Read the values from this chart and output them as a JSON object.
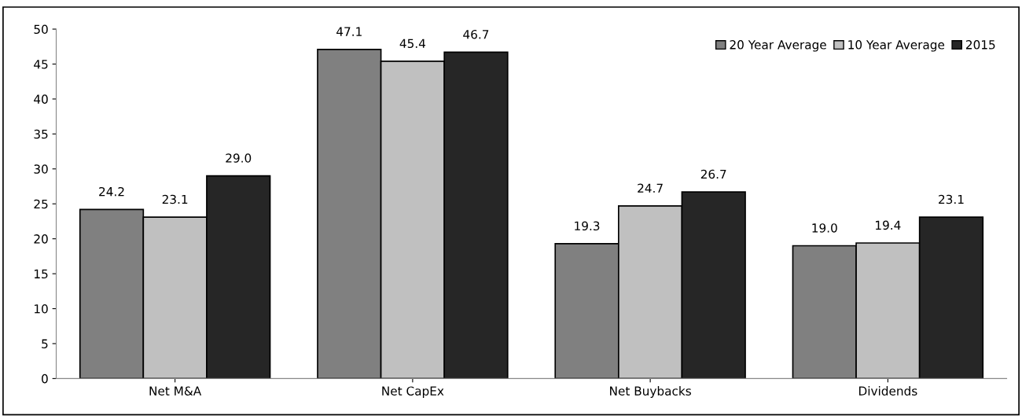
{
  "chart_data": {
    "type": "bar",
    "categories": [
      "Net M&A",
      "Net CapEx",
      "Net Buybacks",
      "Dividends"
    ],
    "series": [
      {
        "name": "20 Year Average",
        "color": "#808080",
        "values": [
          24.2,
          47.1,
          19.3,
          19.0
        ],
        "value_labels": [
          "24.2",
          "47.1",
          "19.3",
          "19.0"
        ]
      },
      {
        "name": "10 Year Average",
        "color": "#c0c0c0",
        "values": [
          23.1,
          45.4,
          24.7,
          19.4
        ],
        "value_labels": [
          "23.1",
          "45.4",
          "24.7",
          "19.4"
        ]
      },
      {
        "name": "2015",
        "color": "#262626",
        "values": [
          29.0,
          46.7,
          26.7,
          23.1
        ],
        "value_labels": [
          "29.0",
          "46.7",
          "26.7",
          "23.1"
        ]
      }
    ],
    "ylim": [
      0,
      50
    ],
    "yticks": [
      0,
      5,
      10,
      15,
      20,
      25,
      30,
      35,
      40,
      45,
      50
    ],
    "legend": "top right",
    "grid": false
  }
}
